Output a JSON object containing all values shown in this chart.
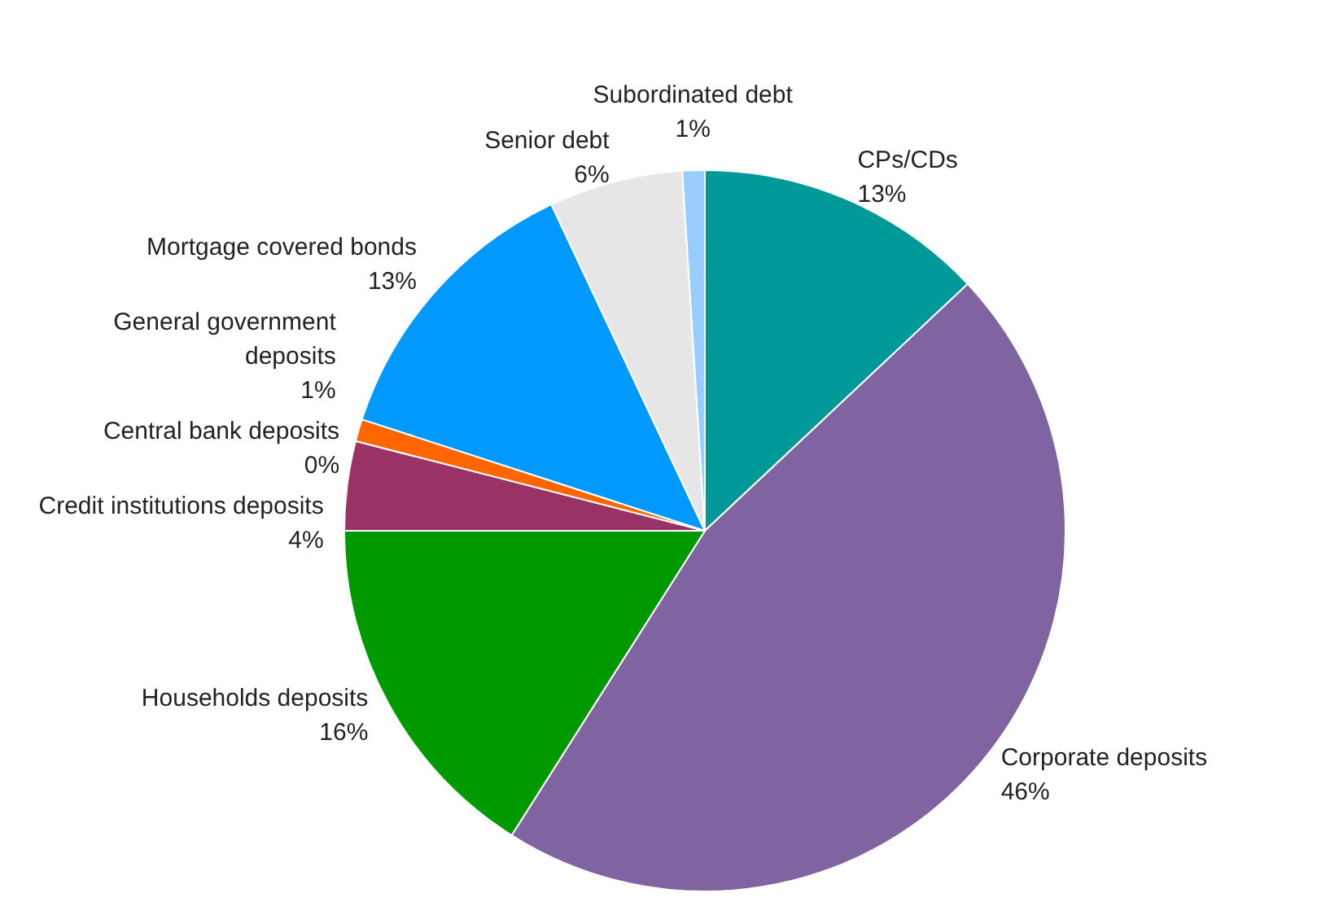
{
  "chart_data": {
    "type": "pie",
    "categories": [
      "CPs/CDs",
      "Corporate deposits",
      "Households deposits",
      "Credit institutions deposits",
      "General government deposits",
      "Central bank deposits",
      "Mortgage covered bonds",
      "Senior debt",
      "Subordinated debt"
    ],
    "values": [
      13,
      46,
      16,
      4,
      1,
      0,
      13,
      6,
      1
    ],
    "value_labels": [
      "13%",
      "46%",
      "16%",
      "4%",
      "1%",
      "0%",
      "13%",
      "6%",
      "1%"
    ],
    "colors": [
      "#009999",
      "#8064a2",
      "#009900",
      "#993366",
      "#ff6600",
      "#ff99cc",
      "#0099ff",
      "#e6e6e6",
      "#99ccff"
    ],
    "legend": false
  }
}
